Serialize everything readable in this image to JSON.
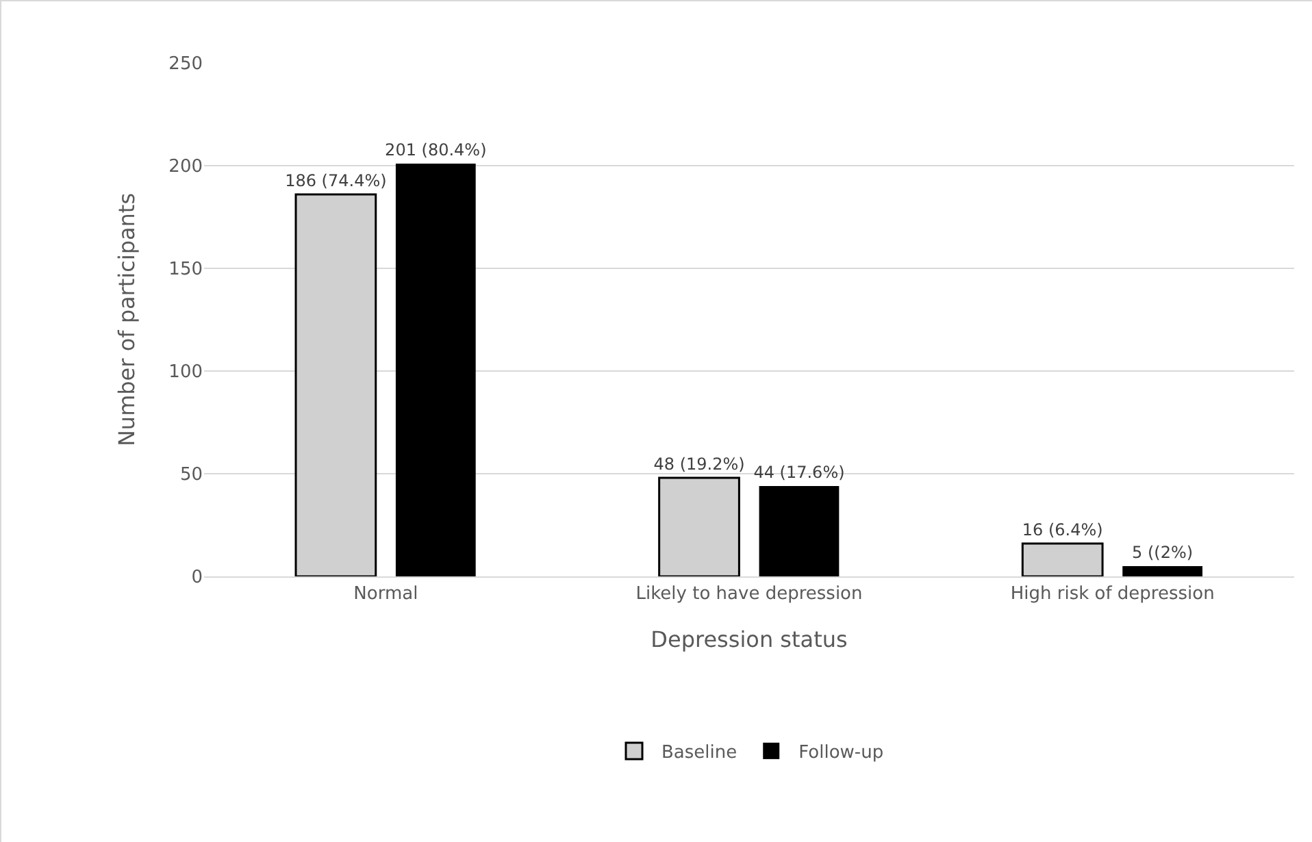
{
  "chart_data": {
    "type": "bar",
    "xlabel": "Depression status",
    "ylabel": "Number of participants",
    "categories": [
      "Normal",
      "Likely to have depression",
      "High risk of depression"
    ],
    "series": [
      {
        "name": "Baseline",
        "color": "#d0d0d0",
        "values": [
          186,
          48,
          16
        ],
        "value_labels": [
          "186 (74.4%)",
          "48 (19.2%)",
          "16 (6.4%)"
        ]
      },
      {
        "name": "Follow-up",
        "color": "#000000",
        "values": [
          201,
          44,
          5
        ],
        "value_labels": [
          "201 (80.4%)",
          "44 (17.6%)",
          "5 ((2%)"
        ]
      }
    ],
    "ylim": [
      0,
      250
    ],
    "yticks": [
      0,
      50,
      100,
      150,
      200,
      250
    ],
    "grid": "y",
    "legend": "bottom"
  }
}
